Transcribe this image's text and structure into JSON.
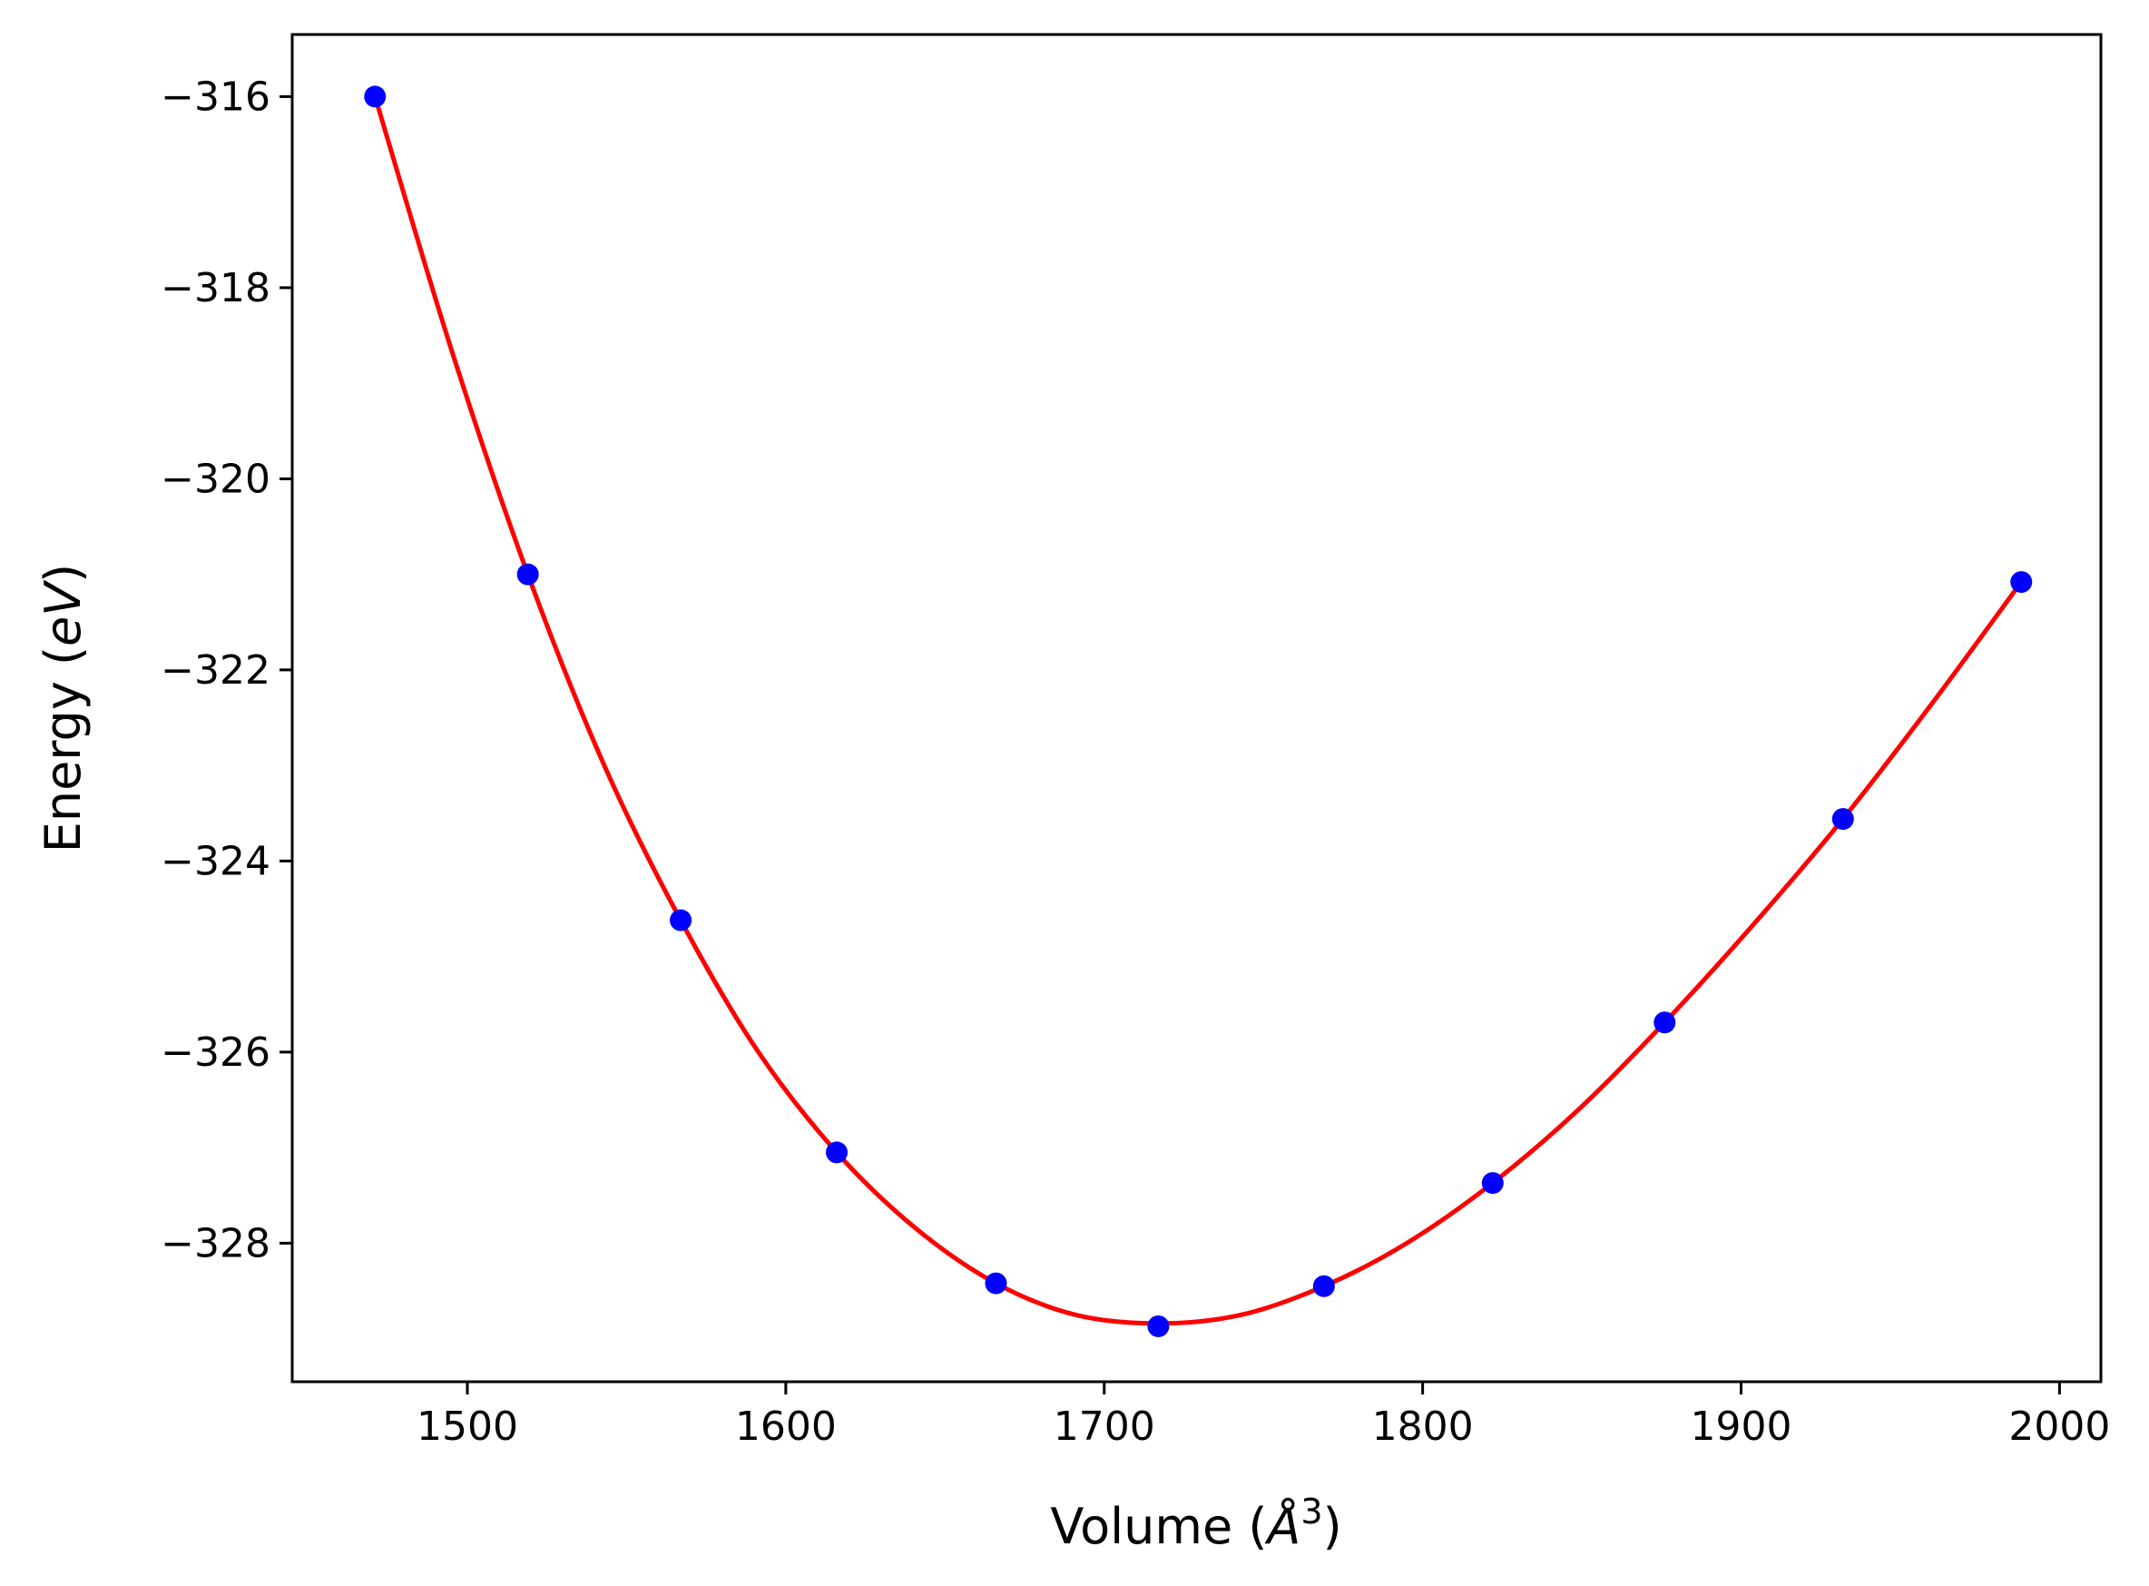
{
  "chart_data": {
    "type": "line",
    "xlabel": {
      "prefix": "Volume (",
      "symbol": "Å",
      "exponent": "3",
      "suffix": ")"
    },
    "ylabel": {
      "prefix": "Energy (",
      "unit": "eV",
      "suffix": ")"
    },
    "xlim": [
      1445,
      2013
    ],
    "ylim": [
      -329.45,
      -315.35
    ],
    "xticks": [
      1500,
      1600,
      1700,
      1800,
      1900,
      2000
    ],
    "xtick_labels": [
      "1500",
      "1600",
      "1700",
      "1800",
      "1900",
      "2000"
    ],
    "yticks": [
      -316,
      -318,
      -320,
      -322,
      -324,
      -326,
      -328
    ],
    "ytick_labels": [
      "−316",
      "−318",
      "−320",
      "−322",
      "−324",
      "−326",
      "−328"
    ],
    "grid": false,
    "legend": "none",
    "series": [
      {
        "kind": "scatter",
        "color": "#0000ff",
        "x": [
          1471,
          1519,
          1567,
          1616,
          1666,
          1717,
          1769,
          1822,
          1876,
          1932,
          1988
        ],
        "y": [
          -316.0,
          -321.0,
          -324.62,
          -327.05,
          -328.42,
          -328.87,
          -328.45,
          -327.37,
          -325.69,
          -323.56,
          -321.08
        ]
      },
      {
        "kind": "fit-line",
        "color": "#ff0000",
        "x": [
          1471,
          1495,
          1519,
          1543,
          1567,
          1591,
          1616,
          1641,
          1666,
          1691,
          1717,
          1743,
          1769,
          1795,
          1822,
          1849,
          1876,
          1904,
          1932,
          1960,
          1988
        ],
        "y": [
          -316.0,
          -318.65,
          -321.0,
          -323.0,
          -324.62,
          -325.98,
          -327.05,
          -327.85,
          -328.42,
          -328.75,
          -328.84,
          -328.75,
          -328.45,
          -328.0,
          -327.37,
          -326.6,
          -325.69,
          -324.66,
          -323.56,
          -322.35,
          -321.08
        ]
      }
    ]
  }
}
